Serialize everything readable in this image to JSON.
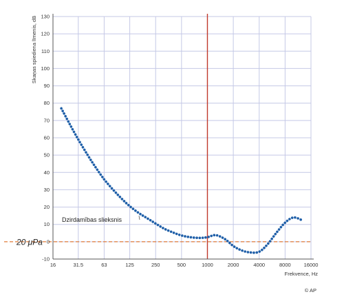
{
  "chart_data": {
    "type": "line",
    "ylabel": "Skaņas spiediena līmenis, dB",
    "xlabel": "Frekvence, Hz",
    "x_scale": "log2",
    "xlim": [
      16,
      16000
    ],
    "ylim": [
      -10,
      130
    ],
    "x_ticks": [
      16,
      31.5,
      63,
      125,
      250,
      500,
      1000,
      2000,
      4000,
      8000,
      16000
    ],
    "x_tick_labels": [
      "16",
      "31.5",
      "63",
      "125",
      "250",
      "500",
      "1000",
      "2000",
      "4000",
      "8000",
      "16000"
    ],
    "y_ticks": [
      -10,
      0,
      10,
      20,
      30,
      40,
      50,
      60,
      70,
      80,
      90,
      100,
      110,
      120,
      130
    ],
    "grid": true,
    "series": [
      {
        "name": "Dzirdamības slieksnis",
        "style": "dotted",
        "color": "#1f5fa8",
        "x": [
          20,
          25,
          31.5,
          40,
          50,
          63,
          80,
          100,
          125,
          160,
          200,
          250,
          315,
          400,
          500,
          630,
          800,
          1000,
          1250,
          1600,
          2000,
          2500,
          3150,
          4000,
          5000,
          6300,
          8000,
          10000,
          12500
        ],
        "y": [
          77,
          68,
          59,
          50.5,
          43,
          36,
          30,
          25,
          20.5,
          16.5,
          13.5,
          10.5,
          7.5,
          5.3,
          3.6,
          2.6,
          2.2,
          2.6,
          3.8,
          1.5,
          -2.5,
          -5.0,
          -6.2,
          -5.8,
          -1.5,
          5.0,
          11.0,
          14.0,
          12.5
        ]
      }
    ],
    "reference_lines": [
      {
        "axis": "x",
        "value": 1000,
        "color": "#c0392b"
      },
      {
        "axis": "y",
        "value": 0,
        "color": "#e07b39",
        "style": "dashed",
        "label": "20 μPa"
      }
    ],
    "annotations": [
      {
        "text": "Dzirdamības slieksnis",
        "points_to": {
          "x": 160,
          "y": 15
        }
      }
    ]
  },
  "credit": "© AP",
  "colors": {
    "grid": "#c4c8e6",
    "axis": "#555555",
    "tick_text": "#333333",
    "curve": "#1f5fa8",
    "vertical_ref": "#c0392b",
    "zero_ref": "#e07b39"
  }
}
